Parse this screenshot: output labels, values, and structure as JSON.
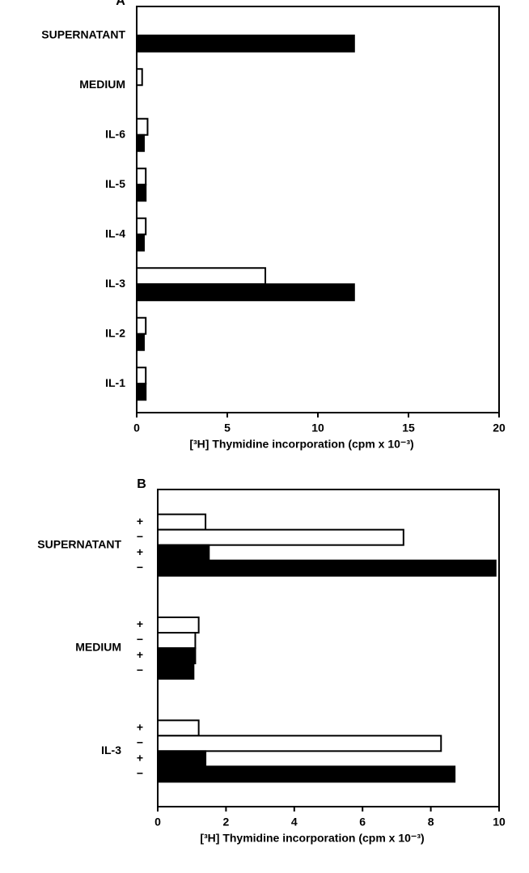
{
  "chart_data": [
    {
      "type": "bar",
      "orientation": "horizontal",
      "title": "A",
      "categories": [
        "SUPERNATANT",
        "MEDIUM",
        "IL-6",
        "IL-5",
        "IL-4",
        "IL-3",
        "IL-2",
        "IL-1"
      ],
      "series": [
        {
          "color": "#ffffff",
          "values": [
            null,
            0.3,
            0.6,
            0.5,
            0.5,
            7.1,
            0.5,
            0.5
          ]
        },
        {
          "color": "#000000",
          "values": [
            12.0,
            null,
            0.4,
            0.5,
            0.4,
            12.0,
            0.4,
            0.5
          ]
        }
      ],
      "xlim": [
        0,
        20
      ],
      "xticks": [
        0,
        5,
        10,
        15,
        20
      ],
      "xlabel": "[³H] Thymidine incorporation (cpm x 10⁻³)"
    },
    {
      "type": "bar",
      "orientation": "horizontal",
      "title": "B",
      "categories": [
        "SUPERNATANT",
        "MEDIUM",
        "IL-3"
      ],
      "series": [
        {
          "name": "+",
          "color": "#ffffff",
          "values": [
            1.4,
            1.2,
            1.2
          ]
        },
        {
          "name": "−",
          "color": "#ffffff",
          "values": [
            7.2,
            1.1,
            8.3
          ]
        },
        {
          "name": "+",
          "color": "#000000",
          "values": [
            1.5,
            1.1,
            1.4
          ]
        },
        {
          "name": "−",
          "color": "#000000",
          "values": [
            9.9,
            1.05,
            8.7
          ]
        }
      ],
      "xlim": [
        0,
        10
      ],
      "xticks": [
        0,
        2,
        4,
        6,
        8,
        10
      ],
      "xlabel": "[³H] Thymidine incorporation (cpm x 10⁻³)"
    }
  ]
}
